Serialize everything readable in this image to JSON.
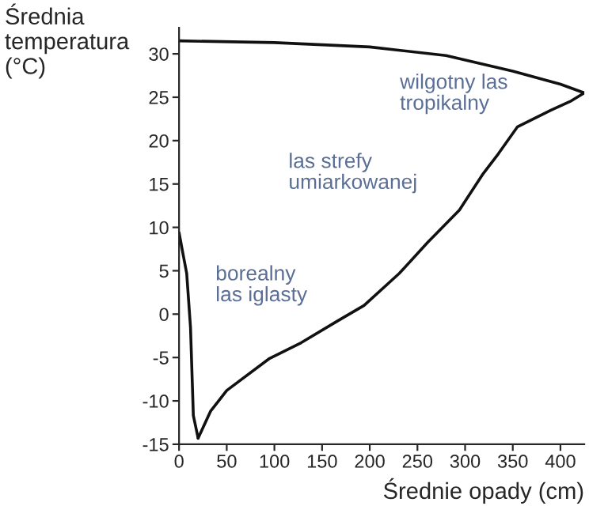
{
  "chart_data": {
    "type": "line",
    "xlabel": "Średnie opady (cm)",
    "ylabel": "Średnia\ntemperatura\n(°C)",
    "series": [
      {
        "color": "#111111",
        "x": [
          0,
          100,
          200,
          280,
          350,
          400,
          425
        ],
        "values": [
          31.5,
          31.3,
          30.8,
          29.8,
          28,
          26.5,
          25.5
        ]
      },
      {
        "color": "#111111",
        "x": [
          20,
          33,
          50,
          95,
          128,
          166,
          194,
          231,
          261,
          294,
          319,
          335,
          355,
          390,
          410,
          425
        ],
        "values": [
          -14.3,
          -11.2,
          -8.8,
          -5.1,
          -3.3,
          -0.8,
          1.0,
          4.7,
          8.3,
          12,
          16.2,
          18.5,
          21.6,
          23.5,
          24.5,
          25.5
        ]
      },
      {
        "color": "#111111",
        "x": [
          0,
          3,
          8,
          12,
          15,
          20
        ],
        "values": [
          9.4,
          7.6,
          4.7,
          -1.5,
          -11.7,
          -14.3
        ]
      }
    ],
    "xlim": [
      0,
      425
    ],
    "ylim": [
      -15,
      33
    ],
    "xticks": [
      0,
      50,
      100,
      150,
      200,
      250,
      300,
      350,
      400
    ],
    "yticks": [
      -15,
      -10,
      -5,
      0,
      5,
      10,
      15,
      20,
      25,
      30
    ],
    "grid": false,
    "legend": false,
    "marker": "none",
    "line_style": "solid",
    "annotations": [
      "wilgotny las\ntropikalny",
      "las strefy\numiarkowanej",
      "borealny\nlas iglasty"
    ]
  }
}
